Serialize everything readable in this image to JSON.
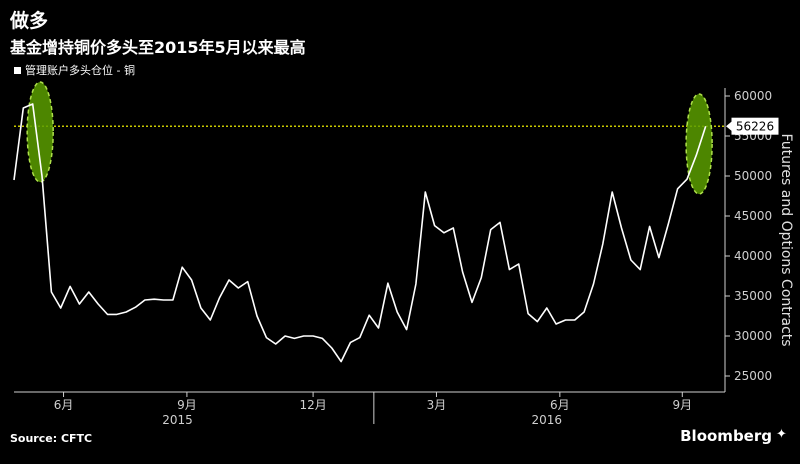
{
  "title": "做多",
  "subtitle": "基金增持铜价多头至2015年5月以来最高",
  "source": "Source: CFTC",
  "brand": "Bloomberg",
  "colors": {
    "line": "#ffffff",
    "reference": "#c8c800",
    "highlight": "#5a9e00",
    "highlight_border": "#aee04a",
    "axis": "#cfcfcf"
  },
  "chart_data": {
    "type": "line",
    "legend": "管理账户多头仓位 - 铜",
    "legend_placement": "top-left",
    "ylabel": "Futures and Options Contracts",
    "ylim": [
      23000,
      61000
    ],
    "yticks": [
      25000,
      30000,
      35000,
      40000,
      45000,
      50000,
      55000,
      60000
    ],
    "ytick_labels": [
      "25000",
      "30000",
      "35000",
      "40000",
      "45000",
      "50000",
      "55000",
      "60000"
    ],
    "xlim": [
      0,
      75
    ],
    "xticks": [
      {
        "index": 5.3,
        "label": "6月"
      },
      {
        "index": 18.5,
        "label": "9月"
      },
      {
        "index": 32.0,
        "label": "12月"
      },
      {
        "index": 45.2,
        "label": "3月"
      },
      {
        "index": 58.4,
        "label": "6月"
      },
      {
        "index": 71.5,
        "label": "9月"
      }
    ],
    "year_labels": [
      {
        "index": 17.5,
        "label": "2015"
      },
      {
        "index": 57.0,
        "label": "2016"
      }
    ],
    "year_separators": [
      38.5
    ],
    "reference_line": {
      "value": 56226,
      "label": "56226"
    },
    "highlights": [
      {
        "index": 2.8,
        "value": 55500,
        "label": ""
      },
      {
        "index": 73.3,
        "value": 54000,
        "label": ""
      }
    ],
    "series": [
      {
        "values": [
          49500,
          58500,
          59000,
          50000,
          35500,
          33500,
          36200,
          34000,
          35500,
          34000,
          32700,
          32700,
          33000,
          33600,
          34500,
          34600,
          34500,
          34500,
          38600,
          37000,
          33500,
          32000,
          34800,
          37000,
          36000,
          36800,
          32500,
          29800,
          29000,
          30000,
          29700,
          30000,
          30000,
          29700,
          28500,
          26800,
          29200,
          29800,
          32600,
          31000,
          36600,
          33000,
          30800,
          36500,
          48000,
          43800,
          42900,
          43500,
          38000,
          34200,
          37300,
          43300,
          44200,
          38300,
          39000,
          32800,
          31800,
          33500,
          31500,
          32000,
          32000,
          33000,
          36500,
          41500,
          48000,
          43500,
          39500,
          38300,
          43700,
          39800,
          44000,
          48400,
          49600,
          52600,
          56226
        ]
      }
    ]
  }
}
